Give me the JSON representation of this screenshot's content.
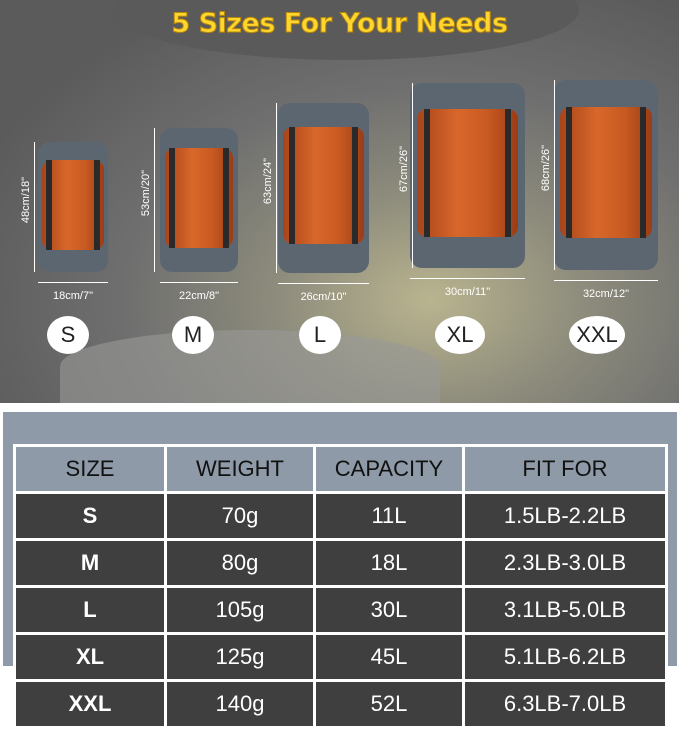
{
  "title": "5 Sizes For Your Needs",
  "bags": [
    {
      "size": "S",
      "height": "48cm/18\"",
      "width": "18cm/7\""
    },
    {
      "size": "M",
      "height": "53cm/20\"",
      "width": "22cm/8\""
    },
    {
      "size": "L",
      "height": "63cm/24\"",
      "width": "26cm/10\""
    },
    {
      "size": "XL",
      "height": "67cm/26\"",
      "width": "30cm/11\""
    },
    {
      "size": "XXL",
      "height": "68cm/26\"",
      "width": "32cm/12\""
    }
  ],
  "table": {
    "headers": [
      "SIZE",
      "WEIGHT",
      "CAPACITY",
      "FIT FOR"
    ],
    "rows": [
      [
        "S",
        "70g",
        "11L",
        "1.5LB-2.2LB"
      ],
      [
        "M",
        "80g",
        "18L",
        "2.3LB-3.0LB"
      ],
      [
        "L",
        "105g",
        "30L",
        "3.1LB-5.0LB"
      ],
      [
        "XL",
        "125g",
        "45L",
        "5.1LB-6.2LB"
      ],
      [
        "XXL",
        "140g",
        "52L",
        "6.3LB-7.0LB"
      ]
    ]
  },
  "colors": {
    "bag_orange": "#d8672a",
    "bag_gray": "#5c6670",
    "title_yellow": "#ffd62e",
    "table_header": "#8e9aa8",
    "table_cell": "#3f3f3f"
  }
}
